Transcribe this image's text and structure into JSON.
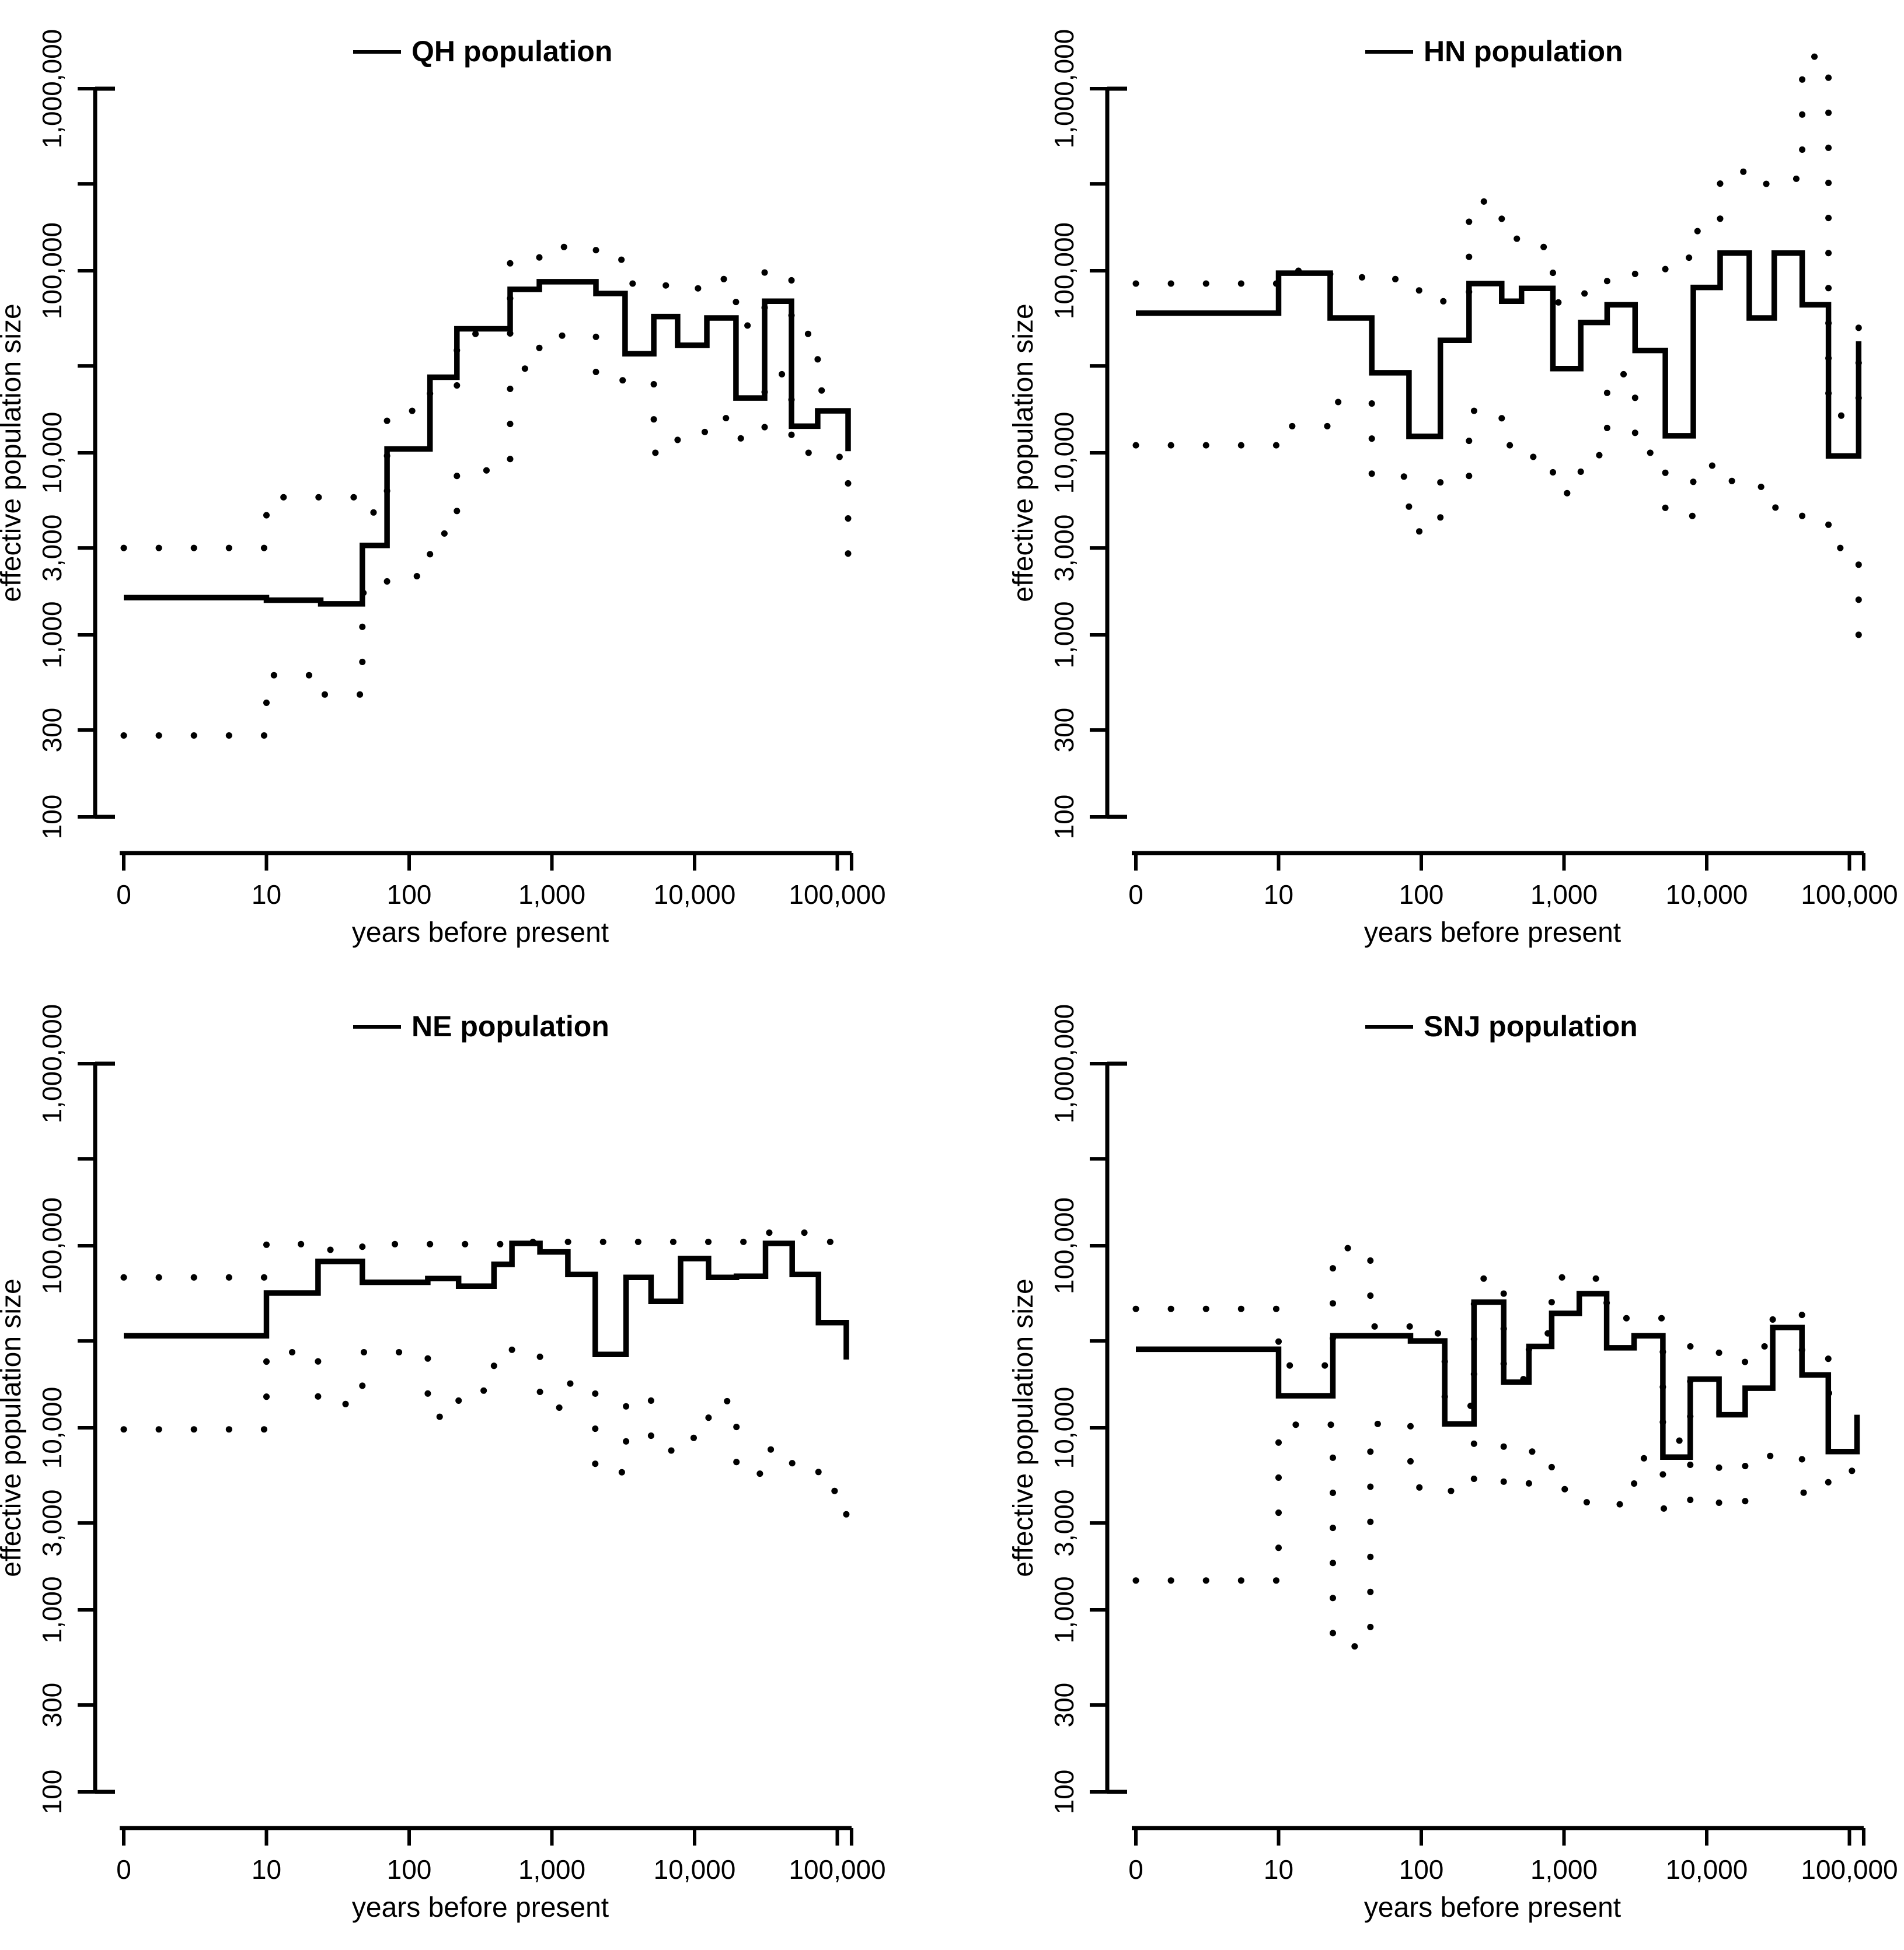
{
  "figure": {
    "description": "Four Bayesian skyline plots of effective population size through time",
    "line_color": "#000000",
    "background": "#ffffff"
  },
  "chart_data": {
    "type": "line",
    "subtype": "step-skyline",
    "x_label": "years before present",
    "y_label": "effective population size",
    "x_scale": "log",
    "y_scale": "log",
    "x_range": [
      1,
      130000
    ],
    "y_range": [
      100,
      1000000
    ],
    "grid": false,
    "legend_position": "top-center-per-panel",
    "x_ticks": [
      {
        "t": 1,
        "label": "0"
      },
      {
        "t": 10,
        "label": "10"
      },
      {
        "t": 100,
        "label": "100"
      },
      {
        "t": 1000,
        "label": "1,000"
      },
      {
        "t": 10000,
        "label": "10,000"
      },
      {
        "t": 100000,
        "label": "100,000"
      }
    ],
    "y_ticks": [
      {
        "v": 100,
        "label": "100"
      },
      {
        "v": 300,
        "label": "300"
      },
      {
        "v": 1000,
        "label": "1,000"
      },
      {
        "v": 3000,
        "label": "3,000"
      },
      {
        "v": 10000,
        "label": "10,000"
      },
      {
        "v": 30000,
        "label": ""
      },
      {
        "v": 100000,
        "label": "100,000"
      },
      {
        "v": 300000,
        "label": ""
      },
      {
        "v": 1000000,
        "label": "1,000,000"
      }
    ],
    "series_styles": {
      "median": "solid",
      "upper_ci": "dotted",
      "lower_ci": "dotted"
    },
    "panels": [
      {
        "id": "qh",
        "title": "QH population",
        "bounds": [
          1,
          10,
          24,
          47,
          70,
          140,
          216,
          510,
          817,
          2037,
          3258,
          5176,
          7604,
          12190,
          19500,
          30970,
          47750,
          72900,
          119000
        ],
        "median": [
          1600,
          1550,
          1480,
          3100,
          10500,
          26000,
          48000,
          79000,
          87000,
          75000,
          35000,
          56000,
          39000,
          55000,
          20000,
          68000,
          14000,
          17000
        ],
        "median_end": 10200,
        "upper": [
          3000,
          5700,
          5700,
          4700,
          17000,
          23000,
          45000,
          118000,
          135000,
          115000,
          85000,
          83000,
          80000,
          90000,
          50000,
          98000,
          45000,
          22000
        ],
        "upper_end": null,
        "lower": [
          280,
          600,
          470,
          1700,
          2100,
          3600,
          8000,
          29000,
          44000,
          25000,
          24000,
          10000,
          13000,
          15500,
          12000,
          27000,
          10000,
          9500
        ],
        "lower_end": 2600
      },
      {
        "id": "hn",
        "title": "HN population",
        "bounds": [
          1,
          10,
          23,
          45,
          82,
          136,
          216,
          366,
          504,
          836,
          1310,
          2005,
          3150,
          5130,
          8050,
          12420,
          19860,
          29720,
          46690,
          71290,
          116000
        ],
        "median": [
          58500,
          97000,
          55000,
          27500,
          12300,
          41500,
          85000,
          68000,
          80000,
          29000,
          52000,
          65000,
          36500,
          12400,
          81000,
          125000,
          55000,
          125000,
          65000,
          9600
        ],
        "median_end": 41000,
        "upper": [
          85000,
          100000,
          92000,
          90000,
          78000,
          68000,
          240000,
          150000,
          135000,
          67000,
          75000,
          90000,
          100000,
          118000,
          165000,
          350000,
          300000,
          320000,
          1500000,
          16000
        ],
        "upper_end": 60000,
        "lower": [
          11000,
          14000,
          19000,
          7400,
          3700,
          7000,
          17000,
          11000,
          9500,
          6000,
          9700,
          27000,
          10000,
          4500,
          8500,
          7000,
          6500,
          5000,
          4200,
          3000
        ],
        "lower_end": 700
      },
      {
        "id": "ne",
        "title": "NE population",
        "bounds": [
          1,
          10,
          23,
          47,
          135,
          222,
          393,
          525,
          825,
          1295,
          2014,
          3311,
          4955,
          7980,
          12530,
          19640,
          31400,
          48300,
          73800,
          115600
        ],
        "median": [
          32000,
          55000,
          82000,
          63000,
          66000,
          60000,
          79000,
          103000,
          92500,
          69500,
          25300,
          67000,
          49500,
          85000,
          67000,
          68000,
          103000,
          69500,
          37800
        ],
        "median_end": 23700,
        "upper": [
          67000,
          102000,
          95000,
          102000,
          102000,
          102000,
          102000,
          105000,
          105000,
          105000,
          105000,
          105000,
          105000,
          105000,
          105000,
          105000,
          118000,
          118000,
          105000
        ],
        "upper_end": null,
        "lower": [
          9800,
          26000,
          13500,
          26000,
          11500,
          16000,
          27000,
          25000,
          12900,
          17500,
          5700,
          14500,
          7500,
          8800,
          14000,
          5600,
          7600,
          6000,
          4500
        ],
        "lower_end": 2600
      },
      {
        "id": "snj",
        "title": "SNJ population",
        "bounds": [
          1,
          10,
          24,
          44,
          84,
          146,
          234,
          378,
          568,
          820,
          1280,
          1990,
          3100,
          4930,
          7670,
          12200,
          18600,
          29000,
          46500,
          71100,
          113000
        ],
        "median": [
          27000,
          15000,
          32000,
          32000,
          30000,
          10500,
          49000,
          17800,
          28000,
          42500,
          54500,
          27500,
          32000,
          6900,
          18500,
          11800,
          16500,
          35500,
          19500,
          7400
        ],
        "median_end": 11800,
        "upper": [
          45000,
          22000,
          97000,
          36000,
          33000,
          13200,
          66000,
          18500,
          33000,
          67000,
          66000,
          40000,
          40000,
          8500,
          28000,
          23000,
          28000,
          42000,
          26500,
          15500
        ],
        "upper_end": null,
        "lower": [
          1450,
          10400,
          630,
          10500,
          4700,
          4500,
          8300,
          4700,
          7400,
          4600,
          3900,
          3800,
          6800,
          3600,
          6400,
          3700,
          7000,
          6800,
          4400,
          5800
        ],
        "lower_end": null
      }
    ]
  }
}
